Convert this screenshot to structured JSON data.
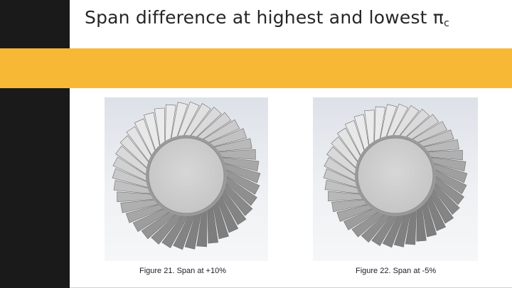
{
  "slide": {
    "title": "Span difference at highest and lowest π",
    "title_subscript": "c",
    "accent_color": "#f7b935",
    "sidebar_color": "#1a1a1a"
  },
  "figures": [
    {
      "caption": "Figure 21. Span at +10%",
      "image_icon": "turbine-rotor-icon"
    },
    {
      "caption": "Figure 22. Span at -5%",
      "image_icon": "turbine-rotor-icon"
    }
  ]
}
